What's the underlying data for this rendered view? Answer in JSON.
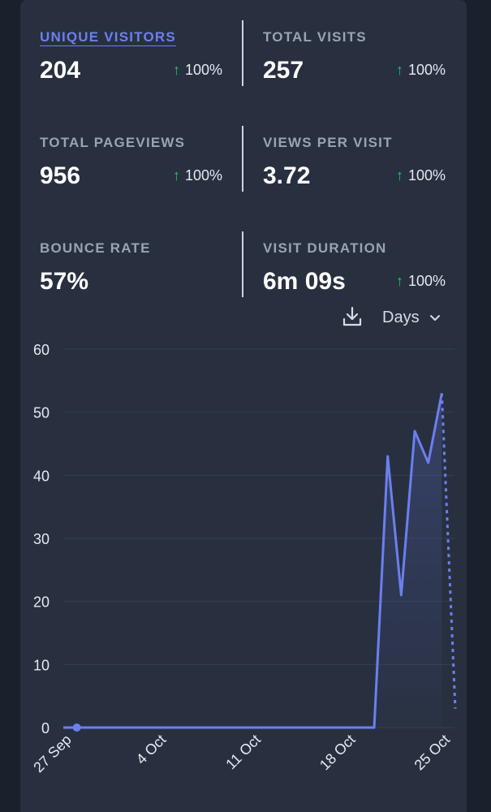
{
  "stats": [
    {
      "label": "UNIQUE VISITORS",
      "value": "204",
      "change": "100%",
      "active": true
    },
    {
      "label": "TOTAL VISITS",
      "value": "257",
      "change": "100%"
    },
    {
      "label": "TOTAL PAGEVIEWS",
      "value": "956",
      "change": "100%"
    },
    {
      "label": "VIEWS PER VISIT",
      "value": "3.72",
      "change": "100%"
    },
    {
      "label": "BOUNCE RATE",
      "value": "57%",
      "change": ""
    },
    {
      "label": "VISIT DURATION",
      "value": "6m 09s",
      "change": "100%"
    }
  ],
  "toolbar": {
    "download_icon": "download-icon",
    "interval_label": "Days",
    "interval_icon": "chevron-down-icon"
  },
  "colors": {
    "background": "#1a202c",
    "card": "#283040",
    "accent": "#6c7ff0",
    "increase": "#22c55e",
    "grid": "#353e4f",
    "tick_text": "#e6e9ef"
  },
  "chart_data": {
    "type": "line",
    "title": "",
    "xlabel": "",
    "ylabel": "",
    "ylim": [
      0,
      60
    ],
    "yticks": [
      0,
      10,
      20,
      30,
      40,
      50,
      60
    ],
    "grid": true,
    "x": [
      "27 Sep",
      "28 Sep",
      "29 Sep",
      "30 Sep",
      "1 Oct",
      "2 Oct",
      "3 Oct",
      "4 Oct",
      "5 Oct",
      "6 Oct",
      "7 Oct",
      "8 Oct",
      "9 Oct",
      "10 Oct",
      "11 Oct",
      "12 Oct",
      "13 Oct",
      "14 Oct",
      "15 Oct",
      "16 Oct",
      "17 Oct",
      "18 Oct",
      "19 Oct",
      "20 Oct",
      "21 Oct",
      "22 Oct",
      "23 Oct",
      "24 Oct",
      "25 Oct",
      "26 Oct"
    ],
    "xtick_labels": [
      "27 Sep",
      "4 Oct",
      "11 Oct",
      "18 Oct",
      "25 Oct"
    ],
    "series": [
      {
        "values": [
          0,
          0,
          0,
          0,
          0,
          0,
          0,
          0,
          0,
          0,
          0,
          0,
          0,
          0,
          0,
          0,
          0,
          0,
          0,
          0,
          0,
          0,
          0,
          0,
          43,
          21,
          47,
          42,
          53,
          3
        ],
        "style_note": "last segment (25 Oct to 26 Oct) dotted, current incomplete period"
      }
    ],
    "highlighted_point": "28 Sep"
  }
}
